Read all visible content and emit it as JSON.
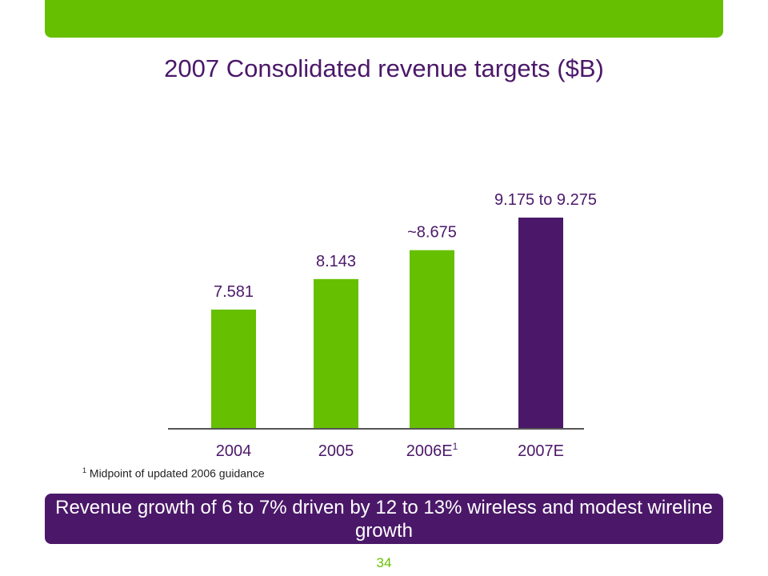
{
  "colors": {
    "brand_green": "#66BF00",
    "brand_purple": "#4B1869",
    "axis": "#555555",
    "text_dark": "#222222"
  },
  "title": "2007 Consolidated revenue targets ($B)",
  "chart_data": {
    "type": "bar",
    "title": "2007 Consolidated revenue targets ($B)",
    "xlabel": "",
    "ylabel": "",
    "ylim": [
      0,
      9.275
    ],
    "grid": false,
    "legend": "none",
    "categories": [
      "2004",
      "2005",
      "2006E",
      "2007E"
    ],
    "category_superscripts": [
      "",
      "",
      "1",
      ""
    ],
    "values": [
      7.581,
      8.143,
      8.675,
      9.275
    ],
    "data_labels": [
      "7.581",
      "8.143",
      "~8.675",
      "9.175 to 9.275"
    ],
    "bar_colors": [
      "#66BF00",
      "#66BF00",
      "#66BF00",
      "#4B1869"
    ]
  },
  "footnote": {
    "marker": "1",
    "text": "Midpoint of updated 2006 guidance"
  },
  "callout": {
    "text": "Revenue growth of 6 to 7% driven by 12 to 13% wireless and modest wireline growth"
  },
  "page_number": "34"
}
